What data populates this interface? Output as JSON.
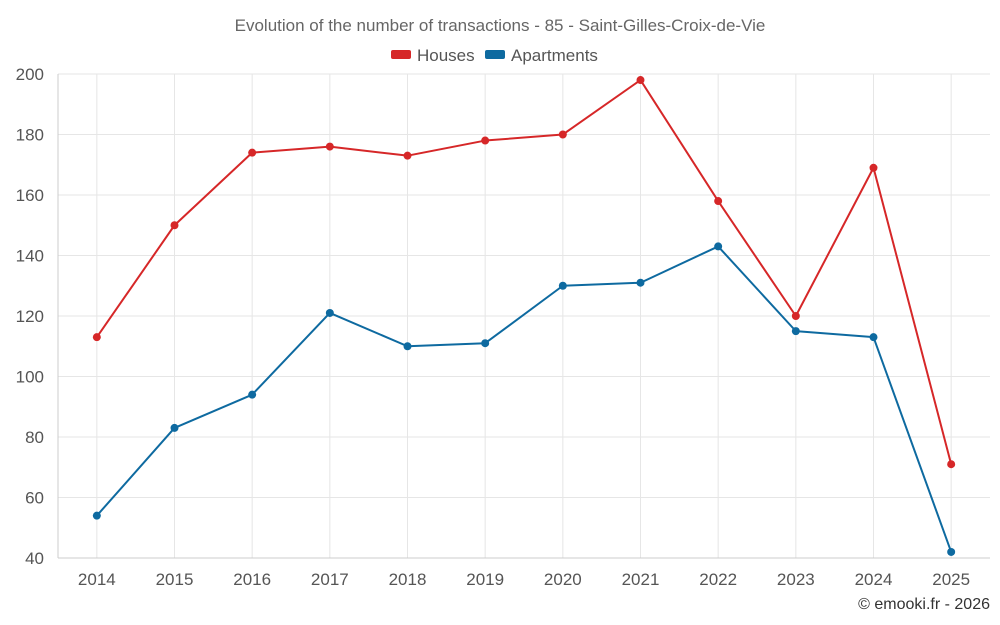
{
  "chart_data": {
    "type": "line",
    "title": "Evolution of the number of transactions - 85 - Saint-Gilles-Croix-de-Vie",
    "categories": [
      "2014",
      "2015",
      "2016",
      "2017",
      "2018",
      "2019",
      "2020",
      "2021",
      "2022",
      "2023",
      "2024",
      "2025"
    ],
    "series": [
      {
        "name": "Houses",
        "color": "#d62728",
        "values": [
          113,
          150,
          174,
          176,
          173,
          178,
          180,
          198,
          158,
          120,
          169,
          71
        ]
      },
      {
        "name": "Apartments",
        "color": "#0e6aa0",
        "values": [
          54,
          83,
          94,
          121,
          110,
          111,
          130,
          131,
          143,
          115,
          113,
          42
        ]
      }
    ],
    "ylim": [
      40,
      200
    ],
    "yticks": [
      "40",
      "60",
      "80",
      "100",
      "120",
      "140",
      "160",
      "180",
      "200"
    ],
    "xlabel": "",
    "ylabel": "",
    "grid": true,
    "legend_position": "top-center"
  },
  "credit": "© emooki.fr - 2026"
}
